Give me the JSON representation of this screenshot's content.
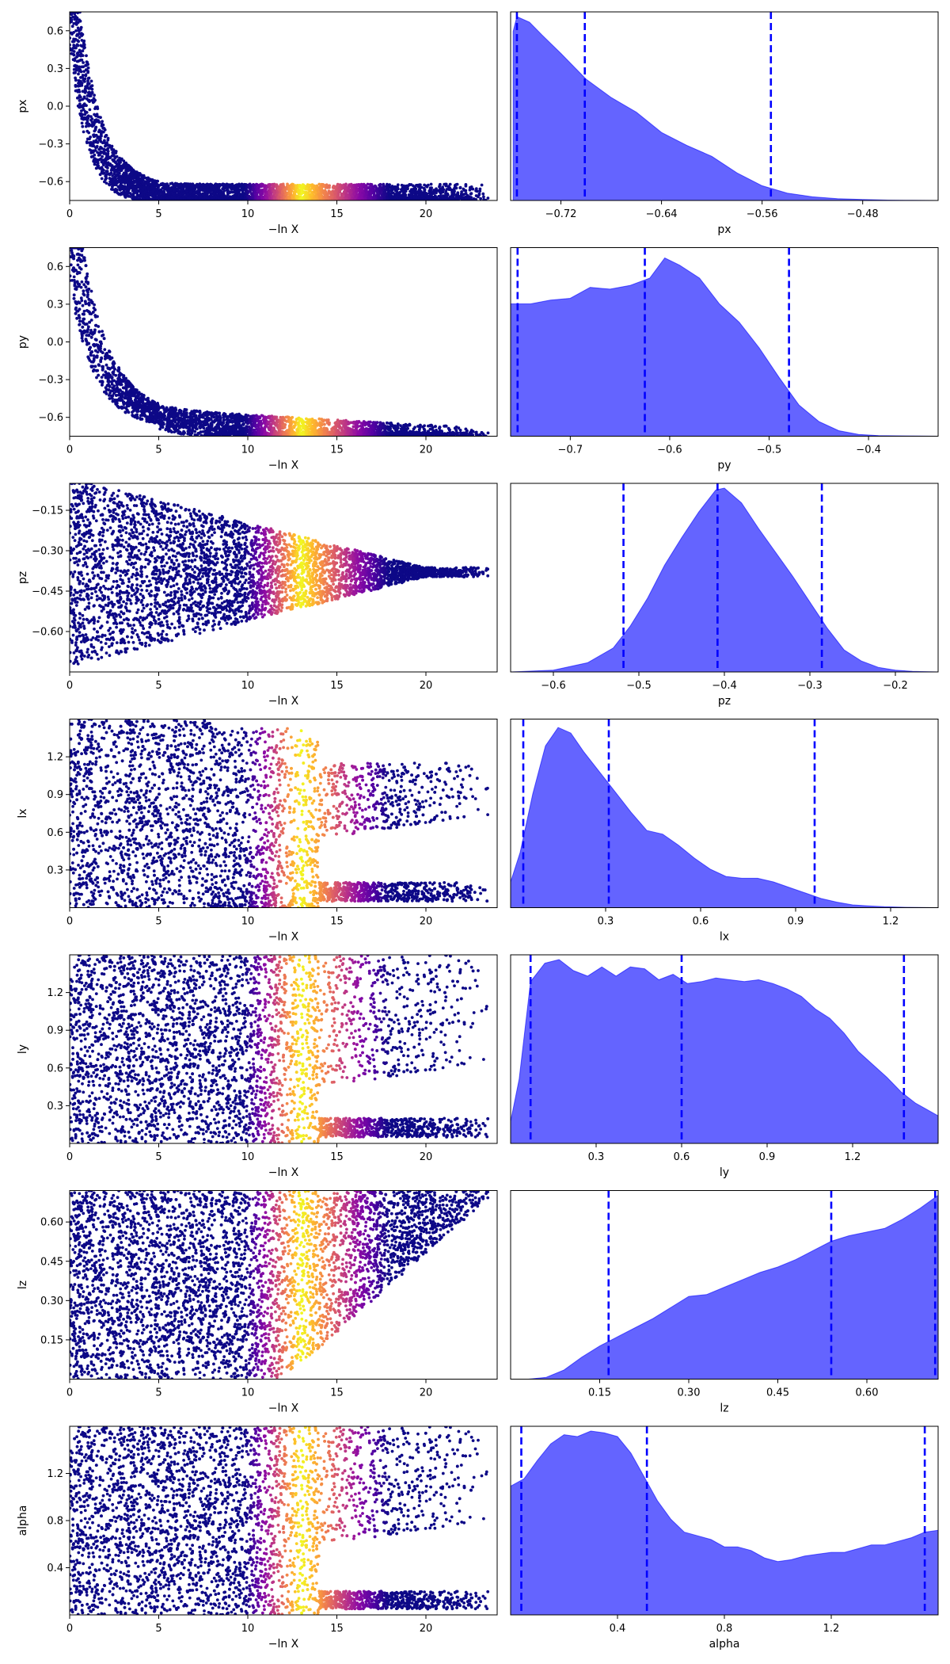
{
  "figure": {
    "background": "#ffffff",
    "kde_color": "#0000ff",
    "kde_fill": "#6464ff",
    "colormap": "plasma"
  },
  "chart_data": [
    {
      "type": "scatter",
      "ylabel": "px",
      "xlabel": "−ln X",
      "xlim": [
        0,
        24
      ],
      "ylim": [
        -0.75,
        0.75
      ],
      "xticks": [
        "0",
        "5",
        "10",
        "15",
        "20"
      ],
      "xtick_values": [
        0,
        5,
        10,
        15,
        20
      ],
      "yticks": [
        "0.6",
        "0.3",
        "0.0",
        "−0.3",
        "−0.6"
      ],
      "ytick_values": [
        0.6,
        0.3,
        0.0,
        -0.3,
        -0.6
      ],
      "shape": {
        "a0": 0.8,
        "decay": 0.9,
        "y_floor": -0.72,
        "spread_low": 0.09,
        "lo_max": -0.75,
        "xmax": 20,
        "upper_band": null
      },
      "colorbar_peak": 13
    },
    {
      "type": "area",
      "xlabel": "px",
      "xlim": [
        -0.76,
        -0.42
      ],
      "xticks": [
        "−0.72",
        "−0.64",
        "−0.56",
        "−0.48"
      ],
      "xtick_values": [
        -0.72,
        -0.64,
        -0.56,
        -0.48
      ],
      "quantile_lines": [
        -0.755,
        -0.701,
        -0.553
      ],
      "density": {
        "x": [
          -0.758,
          -0.755,
          -0.745,
          -0.735,
          -0.72,
          -0.7,
          -0.68,
          -0.66,
          -0.64,
          -0.62,
          -0.6,
          -0.58,
          -0.56,
          -0.54,
          -0.52,
          -0.5,
          -0.48,
          -0.46,
          -0.44,
          -0.42
        ],
        "y": [
          0.92,
          1.0,
          0.97,
          0.9,
          0.8,
          0.66,
          0.56,
          0.48,
          0.37,
          0.3,
          0.24,
          0.15,
          0.08,
          0.04,
          0.02,
          0.01,
          0.005,
          0.002,
          0.001,
          0.0
        ]
      }
    },
    {
      "type": "scatter",
      "ylabel": "py",
      "xlabel": "−ln X",
      "xlim": [
        0,
        24
      ],
      "ylim": [
        -0.75,
        0.75
      ],
      "xticks": [
        "0",
        "5",
        "10",
        "15",
        "20"
      ],
      "xtick_values": [
        0,
        5,
        10,
        15,
        20
      ],
      "yticks": [
        "0.6",
        "0.3",
        "0.0",
        "−0.3",
        "−0.6"
      ],
      "ytick_values": [
        0.6,
        0.3,
        0.0,
        -0.3,
        -0.6
      ],
      "shape": {
        "a0": 0.85,
        "decay": 0.7,
        "y_floor": -0.6,
        "spread_low": 0.12,
        "lo_max": -0.75,
        "xmax": 23,
        "slope": -0.008,
        "upper_band": null
      },
      "colorbar_peak": 13
    },
    {
      "type": "area",
      "xlabel": "py",
      "xlim": [
        -0.76,
        -0.33
      ],
      "xticks": [
        "−0.7",
        "−0.6",
        "−0.5",
        "−0.4"
      ],
      "xtick_values": [
        -0.7,
        -0.6,
        -0.5,
        -0.4
      ],
      "quantile_lines": [
        -0.753,
        -0.625,
        -0.48
      ],
      "density": {
        "x": [
          -0.76,
          -0.74,
          -0.72,
          -0.7,
          -0.68,
          -0.66,
          -0.64,
          -0.62,
          -0.605,
          -0.59,
          -0.57,
          -0.55,
          -0.53,
          -0.51,
          -0.49,
          -0.47,
          -0.45,
          -0.43,
          -0.41,
          -0.39,
          -0.35,
          -0.33
        ],
        "y": [
          0.72,
          0.72,
          0.74,
          0.75,
          0.81,
          0.8,
          0.82,
          0.86,
          0.97,
          0.93,
          0.86,
          0.72,
          0.62,
          0.48,
          0.32,
          0.17,
          0.08,
          0.03,
          0.01,
          0.003,
          0.001,
          0.0
        ]
      }
    },
    {
      "type": "scatter",
      "ylabel": "pz",
      "xlabel": "−ln X",
      "xlim": [
        0,
        24
      ],
      "ylim": [
        -0.75,
        -0.05
      ],
      "xticks": [
        "0",
        "5",
        "10",
        "15",
        "20"
      ],
      "xtick_values": [
        0,
        5,
        10,
        15,
        20
      ],
      "yticks": [
        "−0.15",
        "−0.30",
        "−0.45",
        "−0.60"
      ],
      "ytick_values": [
        -0.15,
        -0.3,
        -0.45,
        -0.6
      ],
      "shape": {
        "converge": -0.3,
        "xmax": 23
      },
      "colorbar_peak": 13
    },
    {
      "type": "area",
      "xlabel": "pz",
      "xlim": [
        -0.65,
        -0.15
      ],
      "xticks": [
        "−0.6",
        "−0.5",
        "−0.4",
        "−0.3",
        "−0.2"
      ],
      "xtick_values": [
        -0.6,
        -0.5,
        -0.4,
        -0.3,
        -0.2
      ],
      "quantile_lines": [
        -0.518,
        -0.408,
        -0.286
      ],
      "density": {
        "x": [
          -0.65,
          -0.6,
          -0.56,
          -0.53,
          -0.51,
          -0.49,
          -0.47,
          -0.45,
          -0.43,
          -0.41,
          -0.4,
          -0.38,
          -0.36,
          -0.34,
          -0.32,
          -0.3,
          -0.28,
          -0.26,
          -0.24,
          -0.22,
          -0.2,
          -0.18,
          -0.15
        ],
        "y": [
          0.0,
          0.01,
          0.05,
          0.13,
          0.25,
          0.4,
          0.58,
          0.73,
          0.87,
          0.99,
          1.0,
          0.92,
          0.78,
          0.65,
          0.52,
          0.38,
          0.24,
          0.12,
          0.06,
          0.025,
          0.01,
          0.003,
          0.0
        ]
      }
    },
    {
      "type": "scatter",
      "ylabel": "lx",
      "xlabel": "−ln X",
      "xlim": [
        0,
        24
      ],
      "ylim": [
        0.0,
        1.5
      ],
      "xticks": [
        "0",
        "5",
        "10",
        "15",
        "20"
      ],
      "xtick_values": [
        0,
        5,
        10,
        15,
        20
      ],
      "yticks": [
        "1.2",
        "0.9",
        "0.6",
        "0.3"
      ],
      "ytick_values": [
        1.2,
        0.9,
        0.6,
        0.3
      ],
      "shape": {
        "upper_band": [
          0.55,
          1.15
        ],
        "floor": 0.05,
        "xmax": 23
      },
      "colorbar_peak": 13
    },
    {
      "type": "area",
      "xlabel": "lx",
      "xlim": [
        0.0,
        1.35
      ],
      "xticks": [
        "0.3",
        "0.6",
        "0.9",
        "1.2"
      ],
      "xtick_values": [
        0.3,
        0.6,
        0.9,
        1.2
      ],
      "quantile_lines": [
        0.04,
        0.31,
        0.96
      ],
      "density": {
        "x": [
          0.0,
          0.03,
          0.07,
          0.11,
          0.15,
          0.19,
          0.23,
          0.28,
          0.33,
          0.38,
          0.43,
          0.48,
          0.53,
          0.58,
          0.63,
          0.68,
          0.73,
          0.78,
          0.83,
          0.88,
          0.93,
          0.98,
          1.03,
          1.08,
          1.13,
          1.18,
          1.25,
          1.35
        ],
        "y": [
          0.14,
          0.3,
          0.62,
          0.88,
          0.98,
          0.95,
          0.85,
          0.74,
          0.63,
          0.52,
          0.42,
          0.4,
          0.34,
          0.27,
          0.21,
          0.17,
          0.16,
          0.16,
          0.14,
          0.11,
          0.08,
          0.05,
          0.03,
          0.015,
          0.01,
          0.005,
          0.002,
          0.0
        ]
      }
    },
    {
      "type": "scatter",
      "ylabel": "ly",
      "xlabel": "−ln X",
      "xlim": [
        0,
        24
      ],
      "ylim": [
        0.0,
        1.5
      ],
      "xticks": [
        "0",
        "5",
        "10",
        "15",
        "20"
      ],
      "xtick_values": [
        0,
        5,
        10,
        15,
        20
      ],
      "yticks": [
        "1.2",
        "0.9",
        "0.6",
        "0.3"
      ],
      "ytick_values": [
        1.2,
        0.9,
        0.6,
        0.3
      ],
      "shape": {
        "upper_band": [
          0.45,
          1.5
        ],
        "floor": 0.05,
        "xmax": 23
      },
      "colorbar_peak": 13
    },
    {
      "type": "area",
      "xlabel": "ly",
      "xlim": [
        0.0,
        1.5
      ],
      "xticks": [
        "0.3",
        "0.6",
        "0.9",
        "1.2"
      ],
      "xtick_values": [
        0.3,
        0.6,
        0.9,
        1.2
      ],
      "quantile_lines": [
        0.07,
        0.6,
        1.38
      ],
      "density": {
        "x": [
          0.0,
          0.03,
          0.07,
          0.12,
          0.17,
          0.22,
          0.27,
          0.32,
          0.37,
          0.42,
          0.47,
          0.52,
          0.57,
          0.62,
          0.67,
          0.72,
          0.77,
          0.82,
          0.87,
          0.92,
          0.97,
          1.02,
          1.07,
          1.12,
          1.17,
          1.22,
          1.27,
          1.32,
          1.37,
          1.42,
          1.5
        ],
        "y": [
          0.12,
          0.35,
          0.88,
          0.98,
          1.0,
          0.94,
          0.91,
          0.96,
          0.91,
          0.96,
          0.95,
          0.89,
          0.92,
          0.87,
          0.88,
          0.9,
          0.89,
          0.88,
          0.89,
          0.87,
          0.84,
          0.8,
          0.73,
          0.68,
          0.6,
          0.5,
          0.43,
          0.36,
          0.28,
          0.22,
          0.15
        ]
      }
    },
    {
      "type": "scatter",
      "ylabel": "lz",
      "xlabel": "−ln X",
      "xlim": [
        0,
        24
      ],
      "ylim": [
        0.0,
        0.72
      ],
      "xticks": [
        "0",
        "5",
        "10",
        "15",
        "20"
      ],
      "xtick_values": [
        0,
        5,
        10,
        15,
        20
      ],
      "yticks": [
        "0.60",
        "0.45",
        "0.30",
        "0.15"
      ],
      "ytick_values": [
        0.6,
        0.45,
        0.3,
        0.15
      ],
      "shape": {
        "rising_floor": true,
        "xmax": 23
      },
      "colorbar_peak": 13
    },
    {
      "type": "area",
      "xlabel": "lz",
      "xlim": [
        0.0,
        0.72
      ],
      "xticks": [
        "0.15",
        "0.30",
        "0.45",
        "0.60"
      ],
      "xtick_values": [
        0.15,
        0.3,
        0.45,
        0.6
      ],
      "quantile_lines": [
        0.165,
        0.54,
        0.715
      ],
      "density": {
        "x": [
          0.0,
          0.03,
          0.06,
          0.09,
          0.12,
          0.15,
          0.18,
          0.21,
          0.24,
          0.27,
          0.3,
          0.33,
          0.36,
          0.39,
          0.42,
          0.45,
          0.48,
          0.51,
          0.54,
          0.57,
          0.6,
          0.63,
          0.66,
          0.69,
          0.72
        ],
        "y": [
          0.0,
          0.0,
          0.01,
          0.05,
          0.12,
          0.18,
          0.23,
          0.28,
          0.33,
          0.39,
          0.45,
          0.46,
          0.5,
          0.54,
          0.58,
          0.61,
          0.65,
          0.7,
          0.75,
          0.78,
          0.8,
          0.82,
          0.87,
          0.93,
          1.0
        ]
      }
    },
    {
      "type": "scatter",
      "ylabel": "alpha",
      "xlabel": "−ln X",
      "xlim": [
        0,
        24
      ],
      "ylim": [
        0.0,
        1.6
      ],
      "xticks": [
        "0",
        "5",
        "10",
        "15",
        "20"
      ],
      "xtick_values": [
        0,
        5,
        10,
        15,
        20
      ],
      "yticks": [
        "1.2",
        "0.8",
        "0.4"
      ],
      "ytick_values": [
        1.2,
        0.8,
        0.4
      ],
      "shape": {
        "upper_band": [
          0.6,
          1.6
        ],
        "floor": 0.05,
        "xmax": 23
      },
      "colorbar_peak": 13
    },
    {
      "type": "area",
      "xlabel": "alpha",
      "xlim": [
        0.0,
        1.6
      ],
      "xticks": [
        "0.4",
        "0.8",
        "1.2"
      ],
      "xtick_values": [
        0.4,
        0.8,
        1.2
      ],
      "quantile_lines": [
        0.04,
        0.51,
        1.55
      ],
      "density": {
        "x": [
          0.0,
          0.05,
          0.1,
          0.15,
          0.2,
          0.25,
          0.3,
          0.35,
          0.4,
          0.45,
          0.5,
          0.55,
          0.6,
          0.65,
          0.7,
          0.75,
          0.8,
          0.85,
          0.9,
          0.95,
          1.0,
          1.05,
          1.1,
          1.15,
          1.2,
          1.25,
          1.3,
          1.35,
          1.4,
          1.45,
          1.5,
          1.55,
          1.6
        ],
        "y": [
          0.7,
          0.74,
          0.84,
          0.93,
          0.98,
          0.97,
          1.0,
          0.99,
          0.97,
          0.88,
          0.75,
          0.62,
          0.52,
          0.45,
          0.43,
          0.41,
          0.37,
          0.37,
          0.35,
          0.31,
          0.29,
          0.3,
          0.32,
          0.33,
          0.34,
          0.34,
          0.36,
          0.38,
          0.38,
          0.4,
          0.42,
          0.45,
          0.46
        ]
      }
    }
  ]
}
